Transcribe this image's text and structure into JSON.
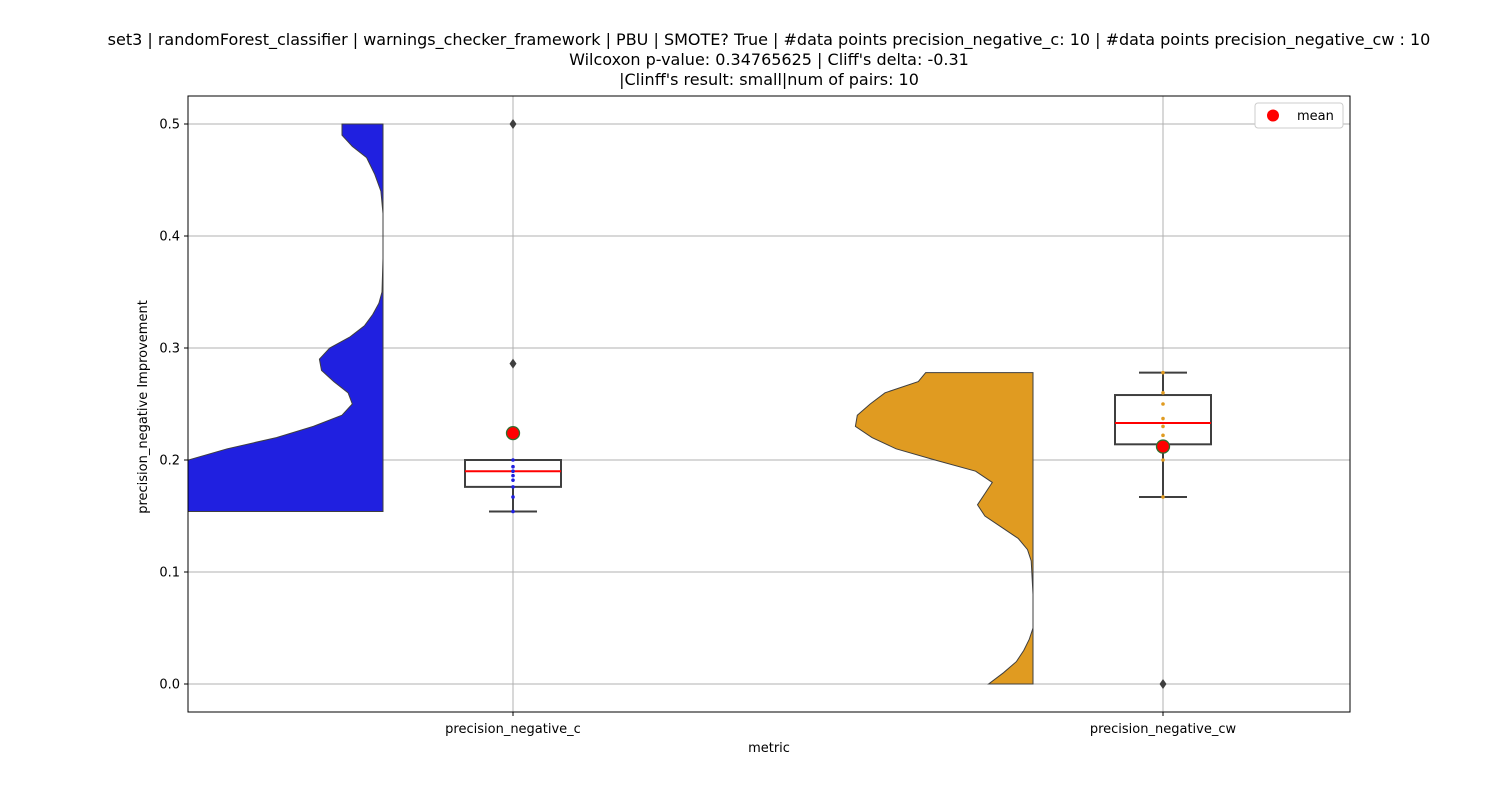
{
  "chart_data": {
    "type": "violin-box",
    "title_lines": [
      "set3 | randomForest_classifier | warnings_checker_framework | PBU | SMOTE? True | #data points precision_negative_c: 10 | #data points precision_negative_cw : 10",
      "Wilcoxon p-value: 0.34765625 | Cliff's delta: -0.31",
      "|Clinff's result: small|num of pairs: 10"
    ],
    "xlabel": "metric",
    "ylabel": "precision_negative Improvement",
    "categories": [
      "precision_negative_c",
      "precision_negative_cw"
    ],
    "ylim": [
      -0.025,
      0.525
    ],
    "yticks": [
      0.0,
      0.1,
      0.2,
      0.3,
      0.4,
      0.5
    ],
    "ytick_labels": [
      "0.0",
      "0.1",
      "0.2",
      "0.3",
      "0.4",
      "0.5"
    ],
    "grid": true,
    "legend": {
      "position": "top-right",
      "entries": [
        {
          "label": "mean",
          "color": "#ff0000",
          "marker": "circle"
        }
      ]
    },
    "series": [
      {
        "category": "precision_negative_c",
        "violin_color": "#2020e0",
        "point_color": "#2020e0",
        "box": {
          "whisker_low": 0.154,
          "q1": 0.176,
          "median": 0.19,
          "q3": 0.2,
          "whisker_high": 0.2
        },
        "mean": 0.224,
        "outliers": [
          0.286,
          0.5
        ],
        "points": [
          0.154,
          0.167,
          0.176,
          0.182,
          0.186,
          0.19,
          0.194,
          0.2,
          0.286,
          0.5
        ],
        "density_y": [
          0.154,
          0.16,
          0.17,
          0.185,
          0.2,
          0.21,
          0.22,
          0.23,
          0.24,
          0.25,
          0.26,
          0.27,
          0.28,
          0.29,
          0.3,
          0.31,
          0.32,
          0.33,
          0.34,
          0.35,
          0.38,
          0.42,
          0.44,
          0.455,
          0.47,
          0.48,
          0.49,
          0.5
        ],
        "density_w": [
          1.0,
          1.0,
          1.0,
          1.0,
          0.95,
          0.76,
          0.52,
          0.34,
          0.2,
          0.15,
          0.17,
          0.24,
          0.3,
          0.31,
          0.26,
          0.16,
          0.09,
          0.05,
          0.02,
          0.005,
          0.0,
          0.0,
          0.01,
          0.04,
          0.08,
          0.15,
          0.2,
          0.2
        ]
      },
      {
        "category": "precision_negative_cw",
        "violin_color": "#e09b21",
        "point_color": "#e09b21",
        "box": {
          "whisker_low": 0.167,
          "q1": 0.214,
          "median": 0.233,
          "q3": 0.258,
          "whisker_high": 0.278
        },
        "mean": 0.212,
        "outliers": [
          0.0
        ],
        "points": [
          0.167,
          0.2,
          0.214,
          0.222,
          0.23,
          0.237,
          0.25,
          0.26,
          0.278
        ],
        "density_y": [
          0.0,
          0.01,
          0.02,
          0.03,
          0.04,
          0.05,
          0.08,
          0.11,
          0.12,
          0.13,
          0.14,
          0.15,
          0.16,
          0.17,
          0.18,
          0.19,
          0.2,
          0.21,
          0.22,
          0.23,
          0.24,
          0.25,
          0.26,
          0.27,
          0.278
        ],
        "density_w": [
          0.24,
          0.16,
          0.09,
          0.05,
          0.02,
          0.0,
          0.0,
          0.01,
          0.03,
          0.08,
          0.17,
          0.26,
          0.3,
          0.26,
          0.22,
          0.31,
          0.53,
          0.74,
          0.87,
          0.96,
          0.95,
          0.88,
          0.8,
          0.62,
          0.58
        ]
      }
    ]
  },
  "colors": {
    "grid": "#b0b0b0",
    "box_edge": "#3f3f3f",
    "median": "#ff0000",
    "mean_fill": "#ff0000",
    "mean_edge": "#2f6f2f",
    "violin_edge": "#3f3f3f",
    "outlier": "#3f3f3f"
  }
}
